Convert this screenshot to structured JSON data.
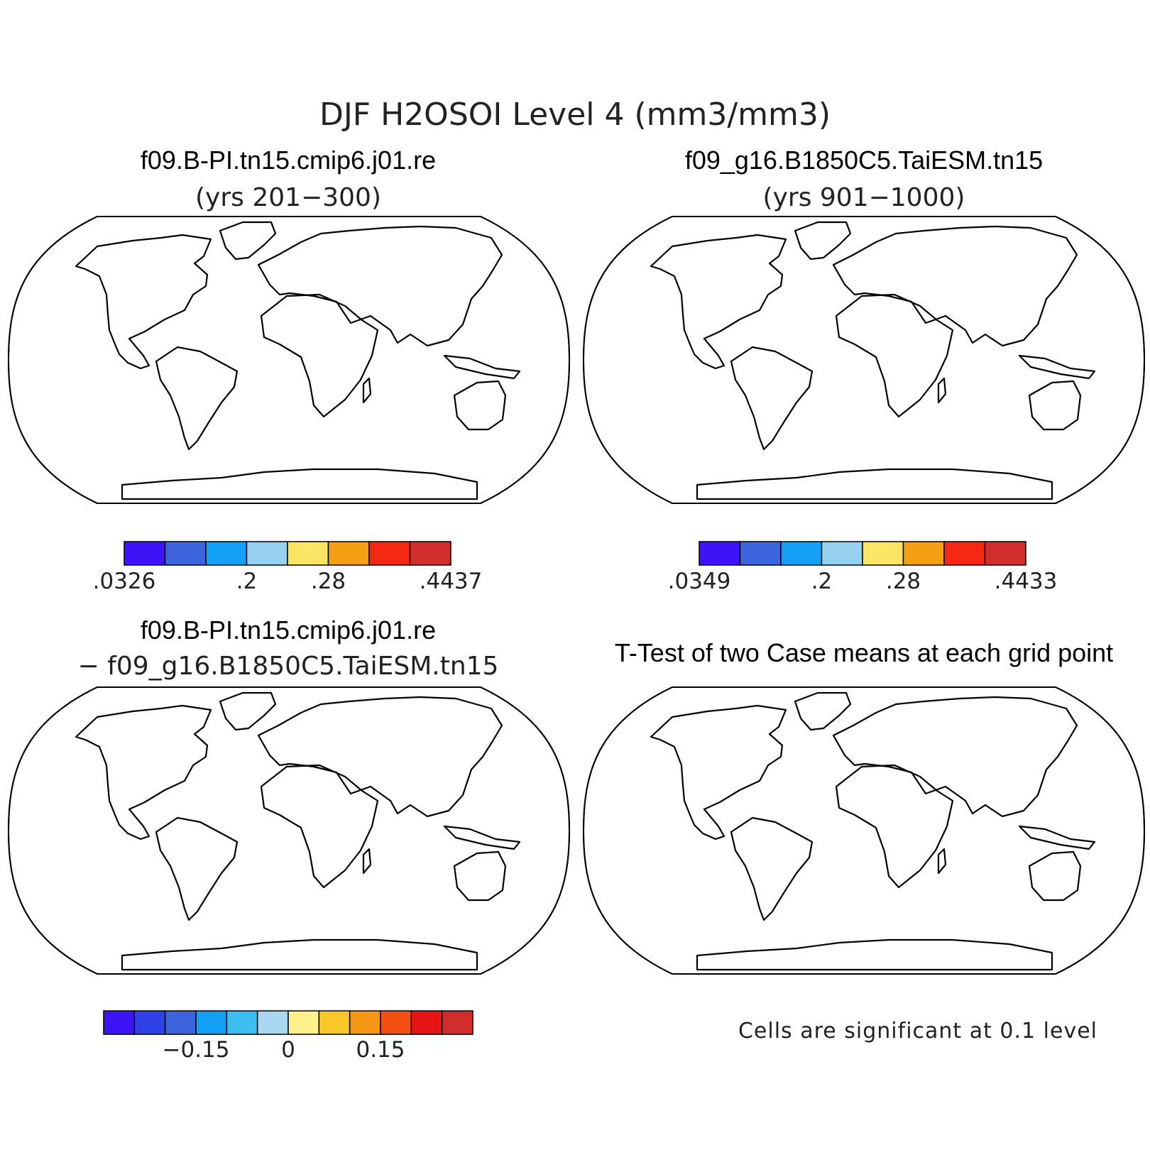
{
  "title": "DJF H2OSOI Level 4 (mm3/mm3)",
  "panels": [
    {
      "id": "case1",
      "title": "f09.B-PI.tn15.cmip6.j01.re",
      "subtitle": "(yrs 201−300)",
      "colorbar": {
        "colors": [
          "#3c14f5",
          "#3c64dc",
          "#14a0f5",
          "#96d2f0",
          "#fae664",
          "#f5a014",
          "#f52814",
          "#d22d2d"
        ],
        "labels": [
          ".0326",
          ".2",
          ".28",
          ".4437"
        ],
        "label_positions": [
          0,
          3,
          5,
          8
        ]
      }
    },
    {
      "id": "case2",
      "title": "f09_g16.B1850C5.TaiESM.tn15",
      "subtitle": "(yrs 901−1000)",
      "colorbar": {
        "colors": [
          "#3c14f5",
          "#3c64dc",
          "#14a0f5",
          "#96d2f0",
          "#fae664",
          "#f5a014",
          "#f52814",
          "#d22d2d"
        ],
        "labels": [
          ".0349",
          ".2",
          ".28",
          ".4433"
        ],
        "label_positions": [
          0,
          3,
          5,
          8
        ]
      }
    },
    {
      "id": "diff",
      "title": "f09.B-PI.tn15.cmip6.j01.re",
      "subtitle": "− f09_g16.B1850C5.TaiESM.tn15",
      "colorbar": {
        "colors": [
          "#3c14f5",
          "#2d41e6",
          "#3c64dc",
          "#14a0f5",
          "#3cbef0",
          "#aad7f0",
          "#fff08c",
          "#fac828",
          "#f59614",
          "#f55014",
          "#e61414",
          "#d22d2d"
        ],
        "labels": [
          "−0.15",
          "0",
          "0.15"
        ],
        "label_positions": [
          3,
          6,
          9
        ]
      }
    },
    {
      "id": "ttest",
      "title": "T-Test of two Case means at each grid point",
      "note": "Cells are significant at 0.1 level",
      "fill": "#f01414"
    }
  ]
}
